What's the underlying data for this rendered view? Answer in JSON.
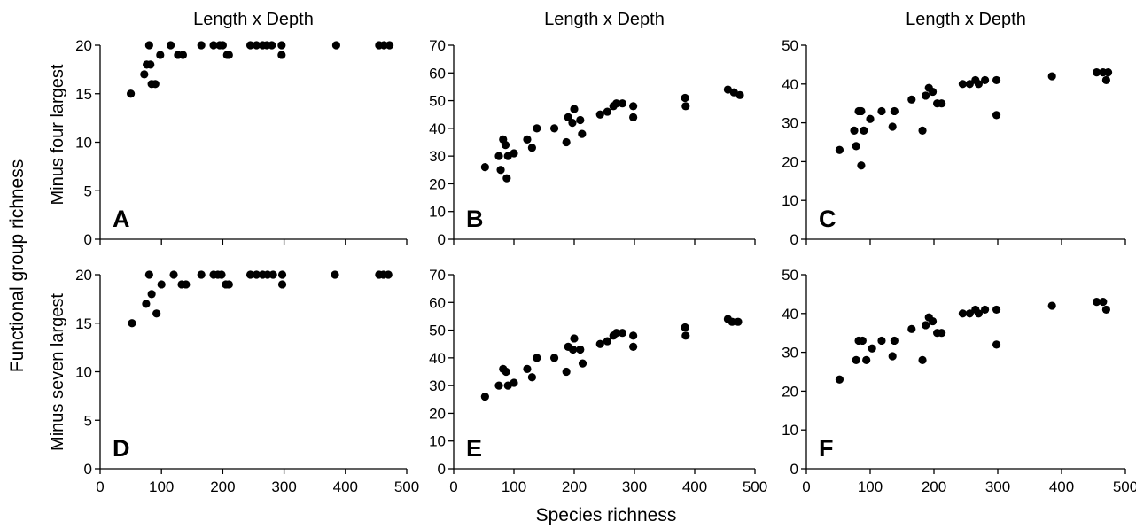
{
  "figure": {
    "ylabel": "Functional group richness",
    "xlabel": "Species richness",
    "row_labels": [
      "Minus four largest",
      "Minus seven largest"
    ]
  },
  "chart_data": [
    {
      "id": "A",
      "type": "scatter",
      "title": "Length x Depth",
      "xlim": [
        0,
        500
      ],
      "ylim": [
        0,
        20
      ],
      "xticks": [
        0,
        100,
        200,
        300,
        400,
        500
      ],
      "yticks": [
        0,
        5,
        10,
        15,
        20
      ],
      "points": [
        [
          50,
          15
        ],
        [
          72,
          17
        ],
        [
          76,
          18
        ],
        [
          80,
          20
        ],
        [
          82,
          18
        ],
        [
          84,
          16
        ],
        [
          90,
          16
        ],
        [
          98,
          19
        ],
        [
          115,
          20
        ],
        [
          127,
          19
        ],
        [
          135,
          19
        ],
        [
          165,
          20
        ],
        [
          185,
          20
        ],
        [
          195,
          20
        ],
        [
          200,
          20
        ],
        [
          207,
          19
        ],
        [
          210,
          19
        ],
        [
          245,
          20
        ],
        [
          255,
          20
        ],
        [
          265,
          20
        ],
        [
          272,
          20
        ],
        [
          280,
          20
        ],
        [
          296,
          20
        ],
        [
          296,
          19
        ],
        [
          385,
          20
        ],
        [
          455,
          20
        ],
        [
          463,
          20
        ],
        [
          472,
          20
        ]
      ]
    },
    {
      "id": "B",
      "type": "scatter",
      "title": "Length x Depth",
      "xlim": [
        0,
        500
      ],
      "ylim": [
        0,
        70
      ],
      "xticks": [
        0,
        100,
        200,
        300,
        400,
        500
      ],
      "yticks": [
        0,
        10,
        20,
        30,
        40,
        50,
        60,
        70
      ],
      "points": [
        [
          52,
          26
        ],
        [
          75,
          30
        ],
        [
          78,
          25
        ],
        [
          82,
          36
        ],
        [
          86,
          34
        ],
        [
          88,
          22
        ],
        [
          90,
          30
        ],
        [
          100,
          31
        ],
        [
          122,
          36
        ],
        [
          130,
          33
        ],
        [
          138,
          40
        ],
        [
          167,
          40
        ],
        [
          187,
          35
        ],
        [
          190,
          44
        ],
        [
          197,
          42
        ],
        [
          200,
          47
        ],
        [
          210,
          43
        ],
        [
          213,
          38
        ],
        [
          243,
          45
        ],
        [
          255,
          46
        ],
        [
          265,
          48
        ],
        [
          270,
          49
        ],
        [
          280,
          49
        ],
        [
          298,
          48
        ],
        [
          298,
          44
        ],
        [
          384,
          51
        ],
        [
          385,
          48
        ],
        [
          455,
          54
        ],
        [
          465,
          53
        ],
        [
          475,
          52
        ]
      ]
    },
    {
      "id": "C",
      "type": "scatter",
      "title": "Length x Depth",
      "xlim": [
        0,
        500
      ],
      "ylim": [
        0,
        50
      ],
      "xticks": [
        0,
        100,
        200,
        300,
        400,
        500
      ],
      "yticks": [
        0,
        10,
        20,
        30,
        40,
        50
      ],
      "points": [
        [
          52,
          23
        ],
        [
          75,
          28
        ],
        [
          78,
          24
        ],
        [
          82,
          33
        ],
        [
          86,
          33
        ],
        [
          86,
          19
        ],
        [
          90,
          28
        ],
        [
          100,
          31
        ],
        [
          118,
          33
        ],
        [
          135,
          29
        ],
        [
          138,
          33
        ],
        [
          165,
          36
        ],
        [
          182,
          28
        ],
        [
          187,
          37
        ],
        [
          192,
          39
        ],
        [
          198,
          38
        ],
        [
          205,
          35
        ],
        [
          212,
          35
        ],
        [
          245,
          40
        ],
        [
          256,
          40
        ],
        [
          265,
          41
        ],
        [
          270,
          40
        ],
        [
          280,
          41
        ],
        [
          298,
          41
        ],
        [
          298,
          32
        ],
        [
          385,
          42
        ],
        [
          455,
          43
        ],
        [
          465,
          43
        ],
        [
          473,
          43
        ],
        [
          470,
          41
        ]
      ]
    },
    {
      "id": "D",
      "type": "scatter",
      "title": "",
      "xlim": [
        0,
        500
      ],
      "ylim": [
        0,
        20
      ],
      "xticks": [
        0,
        100,
        200,
        300,
        400,
        500
      ],
      "yticks": [
        0,
        5,
        10,
        15,
        20
      ],
      "points": [
        [
          52,
          15
        ],
        [
          75,
          17
        ],
        [
          80,
          20
        ],
        [
          84,
          18
        ],
        [
          92,
          16
        ],
        [
          100,
          19
        ],
        [
          120,
          20
        ],
        [
          133,
          19
        ],
        [
          140,
          19
        ],
        [
          165,
          20
        ],
        [
          185,
          20
        ],
        [
          192,
          20
        ],
        [
          198,
          20
        ],
        [
          205,
          19
        ],
        [
          210,
          19
        ],
        [
          245,
          20
        ],
        [
          255,
          20
        ],
        [
          265,
          20
        ],
        [
          273,
          20
        ],
        [
          282,
          20
        ],
        [
          297,
          20
        ],
        [
          297,
          19
        ],
        [
          383,
          20
        ],
        [
          455,
          20
        ],
        [
          462,
          20
        ],
        [
          470,
          20
        ]
      ]
    },
    {
      "id": "E",
      "type": "scatter",
      "title": "",
      "xlim": [
        0,
        500
      ],
      "ylim": [
        0,
        70
      ],
      "xticks": [
        0,
        100,
        200,
        300,
        400,
        500
      ],
      "yticks": [
        0,
        10,
        20,
        30,
        40,
        50,
        60,
        70
      ],
      "points": [
        [
          52,
          26
        ],
        [
          75,
          30
        ],
        [
          82,
          36
        ],
        [
          87,
          35
        ],
        [
          90,
          30
        ],
        [
          100,
          31
        ],
        [
          122,
          36
        ],
        [
          130,
          33
        ],
        [
          138,
          40
        ],
        [
          167,
          40
        ],
        [
          187,
          35
        ],
        [
          190,
          44
        ],
        [
          198,
          43
        ],
        [
          200,
          47
        ],
        [
          210,
          43
        ],
        [
          214,
          38
        ],
        [
          243,
          45
        ],
        [
          255,
          46
        ],
        [
          265,
          48
        ],
        [
          270,
          49
        ],
        [
          280,
          49
        ],
        [
          298,
          48
        ],
        [
          298,
          44
        ],
        [
          384,
          51
        ],
        [
          385,
          48
        ],
        [
          455,
          54
        ],
        [
          462,
          53
        ],
        [
          472,
          53
        ]
      ]
    },
    {
      "id": "F",
      "type": "scatter",
      "title": "",
      "xlim": [
        0,
        500
      ],
      "ylim": [
        0,
        50
      ],
      "xticks": [
        0,
        100,
        200,
        300,
        400,
        500
      ],
      "yticks": [
        0,
        10,
        20,
        30,
        40,
        50
      ],
      "points": [
        [
          52,
          23
        ],
        [
          78,
          28
        ],
        [
          82,
          33
        ],
        [
          88,
          33
        ],
        [
          94,
          28
        ],
        [
          103,
          31
        ],
        [
          118,
          33
        ],
        [
          135,
          29
        ],
        [
          138,
          33
        ],
        [
          165,
          36
        ],
        [
          182,
          28
        ],
        [
          187,
          37
        ],
        [
          192,
          39
        ],
        [
          198,
          38
        ],
        [
          205,
          35
        ],
        [
          212,
          35
        ],
        [
          245,
          40
        ],
        [
          256,
          40
        ],
        [
          265,
          41
        ],
        [
          270,
          40
        ],
        [
          280,
          41
        ],
        [
          298,
          41
        ],
        [
          298,
          32
        ],
        [
          385,
          42
        ],
        [
          455,
          43
        ],
        [
          465,
          43
        ],
        [
          470,
          41
        ]
      ]
    }
  ]
}
